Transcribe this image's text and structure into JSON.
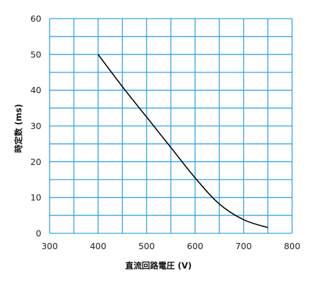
{
  "chart_data": {
    "type": "line",
    "title": "",
    "xlabel": "直流回路電圧 (V)",
    "ylabel": "時定数 (ms)",
    "xlim": [
      300,
      800
    ],
    "ylim": [
      0,
      60
    ],
    "x_ticks": [
      "300",
      "400",
      "500",
      "600",
      "700",
      "800"
    ],
    "y_ticks": [
      "0",
      "10",
      "20",
      "30",
      "40",
      "50",
      "60"
    ],
    "x_minor_step": 50,
    "y_minor_step": 5,
    "grid": true,
    "colors": {
      "grid": "#2ea3e6",
      "line": "#000000",
      "text": "#222222"
    },
    "series": [
      {
        "x": [
          400,
          450,
          500,
          550,
          600,
          650,
          700,
          750
        ],
        "y": [
          50,
          41,
          32.5,
          24,
          15.5,
          8.2,
          3.8,
          1.6
        ]
      }
    ]
  }
}
